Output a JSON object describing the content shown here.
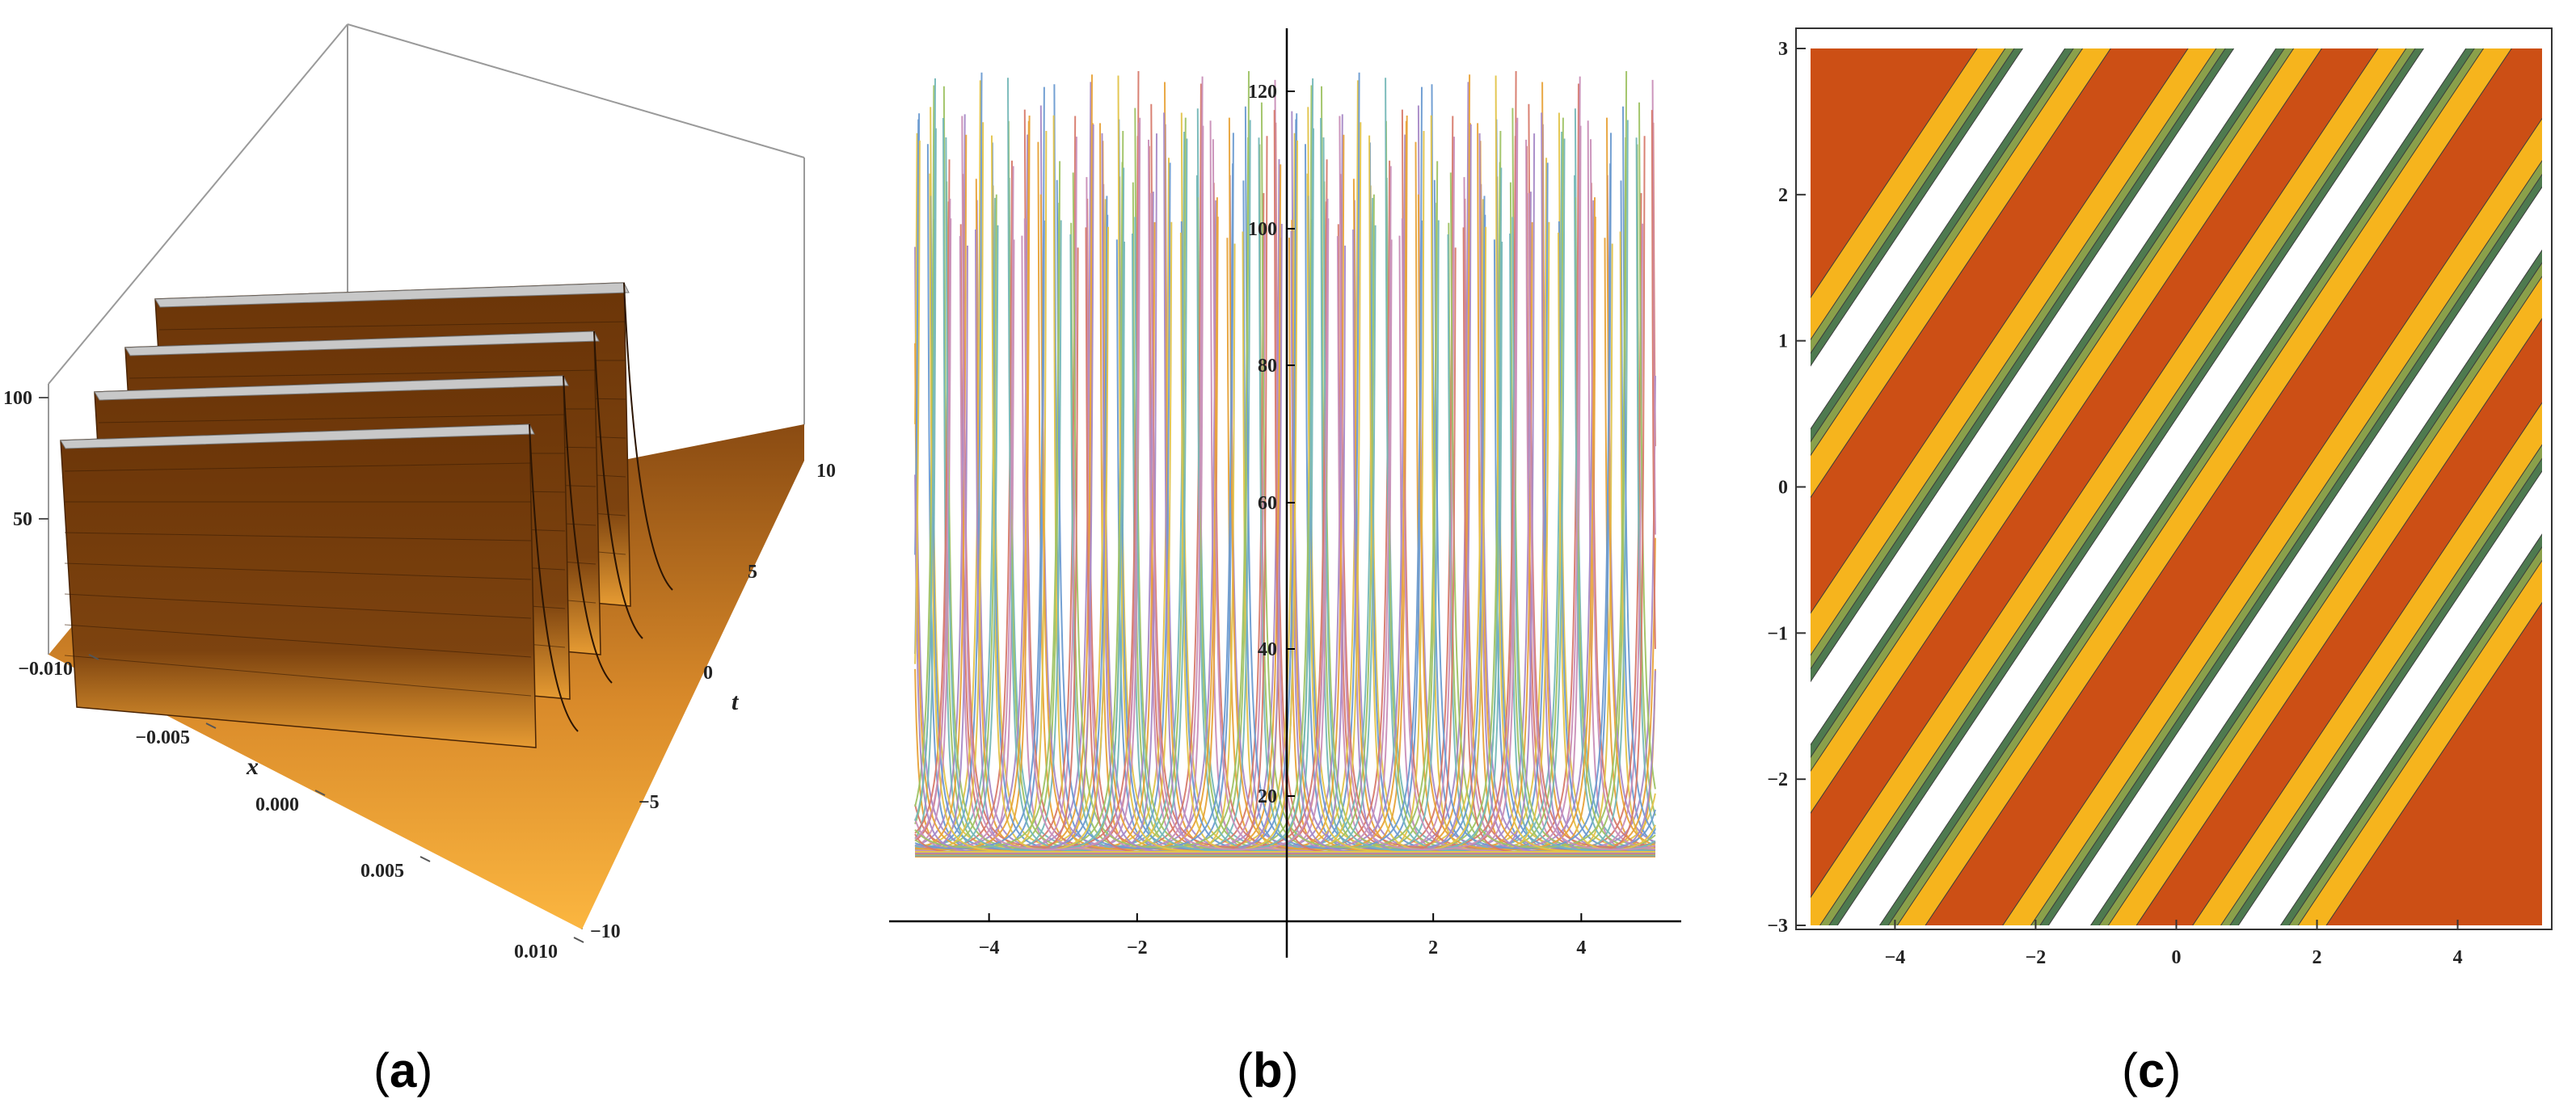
{
  "captions": [
    "a",
    "b",
    "c"
  ],
  "chart_data": [
    {
      "type": "surface",
      "panel": "a",
      "xlabel": "x",
      "ylabel": "t",
      "x_ticks": [
        "−0.010",
        "−0.005",
        "0.000",
        "0.005",
        "0.010"
      ],
      "t_ticks": [
        "10",
        "5",
        "0",
        "−5",
        "−10"
      ],
      "z_ticks": [
        "100",
        "50"
      ],
      "xlim": [
        -0.01,
        0.01
      ],
      "tlim": [
        -10,
        10
      ],
      "zlim": [
        0,
        120
      ],
      "ridge_count": 4,
      "colors": {
        "surface": "#7a4210",
        "base": "#f2a93b",
        "ridge_top": "#c8c8c8"
      }
    },
    {
      "type": "line",
      "panel": "b",
      "x_ticks": [
        "−4",
        "−2",
        "2",
        "4"
      ],
      "y_ticks": [
        "20",
        "40",
        "60",
        "80",
        "100",
        "120"
      ],
      "xlim": [
        -5,
        5
      ],
      "ylim": [
        0,
        125
      ],
      "baseline": 11,
      "curves": "many U-shaped curves y = 11 + A/sin^2(...), clipped at about 122",
      "series_colors": [
        "#e8a33a",
        "#6c9bd1",
        "#9fc365",
        "#d77a6c",
        "#a88ac7",
        "#e3c44b",
        "#76b8b8",
        "#c98fb8"
      ]
    },
    {
      "type": "contour",
      "panel": "c",
      "x_ticks": [
        "−4",
        "−2",
        "0",
        "2",
        "4"
      ],
      "y_ticks": [
        "3",
        "2",
        "1",
        "0",
        "−1",
        "−2",
        "−3"
      ],
      "xlim": [
        -5.2,
        5.2
      ],
      "ylim": [
        -3,
        3
      ],
      "band_colors": [
        "#cc4f15",
        "#f6b41d",
        "#8aa04a",
        "#4e7a4f",
        "#ffffff"
      ]
    }
  ]
}
